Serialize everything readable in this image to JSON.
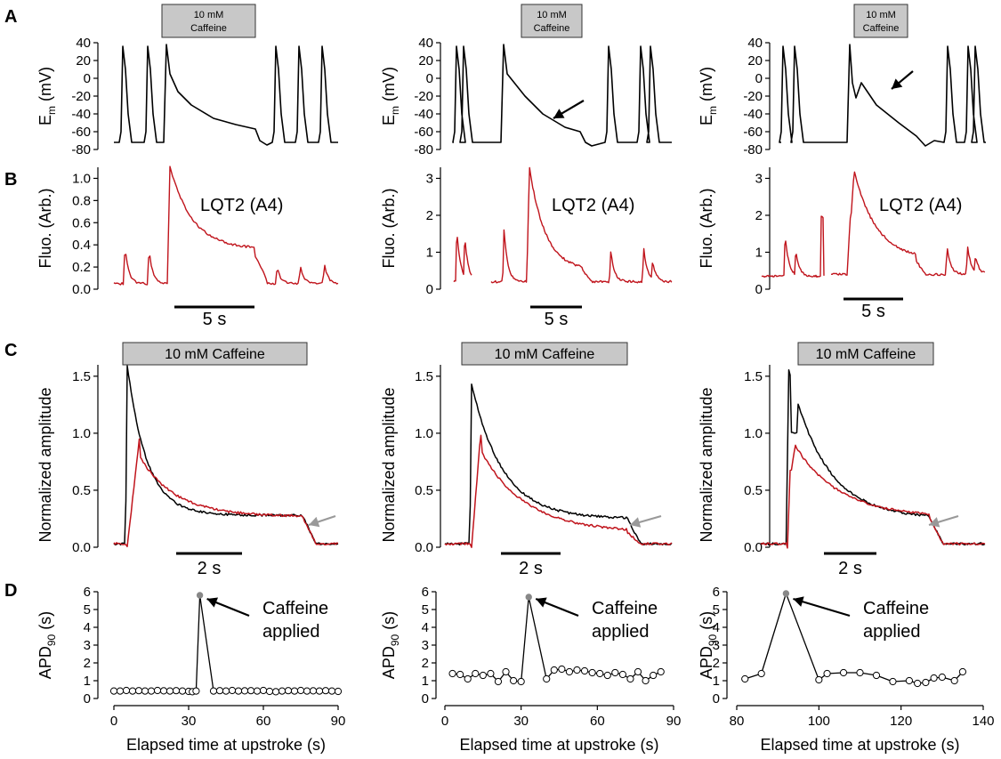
{
  "colors": {
    "vm": "#000000",
    "fluo": "#c0141c",
    "box": "#c8c8c8",
    "arrow_gray": "#999999",
    "marker_gray": "#888888"
  },
  "figure": {
    "panel_labels": [
      "A",
      "B",
      "C",
      "D"
    ],
    "caffeine_small": [
      "10 mM",
      "Caffeine"
    ],
    "caffeine_big": "10 mM Caffeine",
    "ylabel_em_main": "E",
    "ylabel_em_sub": "m",
    "ylabel_em_unit": " (mV)",
    "ylabel_fluo": "Fluo. (Arb.)",
    "ylabel_norm": "Normalized amplitude",
    "ylabel_apd_main": "APD",
    "ylabel_apd_sub": "90",
    "ylabel_apd_unit": " (s)",
    "xlabel_elapsed": "Elapsed time at upstroke (s)",
    "lqt2": "LQT2 (A4)",
    "scale_5s": "5 s",
    "scale_2s": "2 s",
    "caffeine_applied": [
      "Caffeine",
      "applied"
    ]
  },
  "chart_data": [
    {
      "panel": "A",
      "column": 1,
      "type": "line",
      "ylabel": "Em (mV)",
      "ylim": [
        -80,
        40
      ],
      "yticks": [
        40,
        20,
        0,
        -20,
        -40,
        -60,
        -80
      ],
      "series": [
        {
          "color": "#000000",
          "note_pts": []
        }
      ]
    },
    {
      "panel": "A",
      "column": 2,
      "type": "line",
      "ylabel": "Em (mV)",
      "ylim": [
        -80,
        40
      ],
      "yticks": [
        40,
        20,
        0,
        -20,
        -40,
        -60,
        -80
      ]
    },
    {
      "panel": "A",
      "column": 3,
      "type": "line",
      "ylabel": "Em (mV)",
      "ylim": [
        -80,
        40
      ],
      "yticks": [
        40,
        20,
        0,
        -20,
        -40,
        -60,
        -80
      ]
    },
    {
      "panel": "B",
      "column": 1,
      "type": "line",
      "ylabel": "Fluo. (Arb.)",
      "ylim": [
        0,
        1.1
      ],
      "yticks": [
        0.0,
        0.2,
        0.4,
        0.6,
        0.8,
        1.0
      ],
      "ytick_labels": [
        "0.0",
        "0.2",
        "0.4",
        "0.6",
        "0.8",
        "1.0"
      ],
      "scale_bar": "5 s"
    },
    {
      "panel": "B",
      "column": 2,
      "type": "line",
      "ylabel": "Fluo. (Arb.)",
      "ylim": [
        0,
        3.3
      ],
      "yticks": [
        0,
        1,
        2,
        3
      ],
      "ytick_labels": [
        "0",
        "1",
        "2",
        "3"
      ],
      "scale_bar": "5 s"
    },
    {
      "panel": "B",
      "column": 3,
      "type": "line",
      "ylabel": "Fluo. (Arb.)",
      "ylim": [
        0,
        3.3
      ],
      "yticks": [
        0,
        1,
        2,
        3
      ],
      "ytick_labels": [
        "0",
        "1",
        "2",
        "3"
      ],
      "scale_bar": "5 s"
    },
    {
      "panel": "C",
      "column": 1,
      "type": "line",
      "ylabel": "Normalized amplitude",
      "ylim": [
        0,
        1.6
      ],
      "yticks": [
        0.0,
        0.5,
        1.0,
        1.5
      ],
      "ytick_labels": [
        "0.0",
        "0.5",
        "1.0",
        "1.5"
      ],
      "scale_bar": "2 s"
    },
    {
      "panel": "C",
      "column": 2,
      "type": "line",
      "ylabel": "Normalized amplitude",
      "ylim": [
        0,
        1.6
      ],
      "yticks": [
        0.0,
        0.5,
        1.0,
        1.5
      ],
      "ytick_labels": [
        "0.0",
        "0.5",
        "1.0",
        "1.5"
      ],
      "scale_bar": "2 s"
    },
    {
      "panel": "C",
      "column": 3,
      "type": "line",
      "ylabel": "Normalized amplitude",
      "ylim": [
        0,
        1.6
      ],
      "yticks": [
        0.0,
        0.5,
        1.0,
        1.5
      ],
      "ytick_labels": [
        "0.0",
        "0.5",
        "1.0",
        "1.5"
      ],
      "scale_bar": "2 s"
    },
    {
      "panel": "D",
      "column": 1,
      "type": "scatter",
      "xlabel": "Elapsed time at upstroke (s)",
      "ylabel": "APD90 (s)",
      "xlim": [
        0,
        90
      ],
      "ylim": [
        0,
        6
      ],
      "xticks": [
        0,
        30,
        60,
        90
      ],
      "yticks": [
        0,
        1,
        2,
        3,
        4,
        5,
        6
      ],
      "x": [
        0,
        2.5,
        5,
        7.5,
        10,
        12.5,
        15,
        17.5,
        20,
        22.5,
        25,
        27.5,
        30,
        31.5,
        33,
        34.5,
        40,
        42.5,
        45,
        47.5,
        50,
        52.5,
        55,
        57.5,
        60,
        62.5,
        65,
        67.5,
        70,
        72.5,
        75,
        77.5,
        80,
        82.5,
        85,
        87.5,
        90
      ],
      "y": [
        0.42,
        0.42,
        0.45,
        0.42,
        0.44,
        0.42,
        0.42,
        0.45,
        0.43,
        0.42,
        0.44,
        0.42,
        0.4,
        0.38,
        0.42,
        5.8,
        0.42,
        0.44,
        0.42,
        0.45,
        0.42,
        0.43,
        0.44,
        0.42,
        0.45,
        0.4,
        0.38,
        0.42,
        0.44,
        0.42,
        0.45,
        0.42,
        0.43,
        0.42,
        0.44,
        0.42,
        0.4
      ],
      "highlight_x": 34.5
    },
    {
      "panel": "D",
      "column": 2,
      "type": "scatter",
      "xlabel": "Elapsed time at upstroke (s)",
      "ylabel": "APD90 (s)",
      "xlim": [
        0,
        90
      ],
      "ylim": [
        0,
        6
      ],
      "xticks": [
        0,
        30,
        60,
        90
      ],
      "yticks": [
        0,
        1,
        2,
        3,
        4,
        5,
        6
      ],
      "x": [
        3,
        6,
        9,
        12,
        15,
        18,
        21,
        24,
        27,
        30,
        33,
        40,
        43,
        46,
        49,
        52,
        55,
        58,
        61,
        64,
        67,
        70,
        73,
        76,
        79,
        82,
        85
      ],
      "y": [
        1.4,
        1.35,
        1.1,
        1.4,
        1.3,
        1.4,
        0.95,
        1.5,
        1.0,
        0.95,
        5.7,
        1.1,
        1.6,
        1.65,
        1.5,
        1.6,
        1.55,
        1.45,
        1.4,
        1.3,
        1.45,
        1.35,
        1.1,
        1.5,
        1.0,
        1.3,
        1.5
      ],
      "highlight_x": 33
    },
    {
      "panel": "D",
      "column": 3,
      "type": "scatter",
      "xlabel": "Elapsed time at upstroke (s)",
      "ylabel": "APD90 (s)",
      "xlim": [
        80,
        140
      ],
      "ylim": [
        0,
        6
      ],
      "xticks": [
        80,
        100,
        120,
        140
      ],
      "yticks": [
        0,
        1,
        2,
        3,
        4,
        5,
        6
      ],
      "x": [
        82,
        86,
        92,
        100,
        102,
        106,
        110,
        114,
        118,
        122,
        124,
        126,
        128,
        130,
        133,
        135
      ],
      "y": [
        1.1,
        1.4,
        5.9,
        1.05,
        1.4,
        1.45,
        1.45,
        1.3,
        0.95,
        1.0,
        0.85,
        0.9,
        1.15,
        1.2,
        1.0,
        1.5
      ],
      "highlight_x": 92
    }
  ]
}
